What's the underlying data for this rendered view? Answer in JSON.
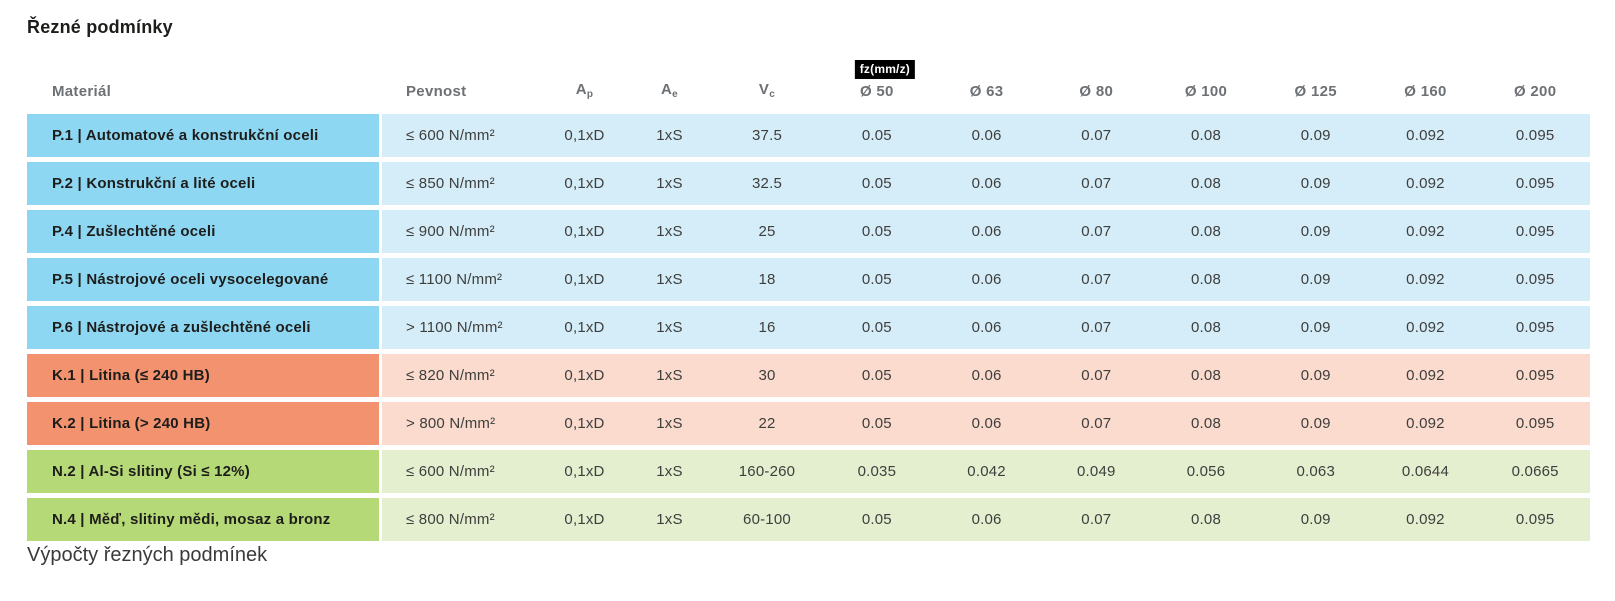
{
  "page": {
    "title": "Řezné podmínky",
    "footer_heading": "Výpočty řezných podmínek"
  },
  "table": {
    "headers": {
      "material": "Materiál",
      "pevnost": "Pevnost",
      "ap_base": "A",
      "ap_sub": "p",
      "ae_base": "A",
      "ae_sub": "e",
      "vc_base": "V",
      "vc_sub": "c",
      "fz_badge": "fz(mm/z)",
      "diameters": [
        "Ø 50",
        "Ø 63",
        "Ø 80",
        "Ø 100",
        "Ø 125",
        "Ø 160",
        "Ø 200"
      ]
    },
    "rows": [
      {
        "group": "steel",
        "material": "P.1 | Automatové a konstrukční oceli",
        "pevnost": "≤ 600 N/mm²",
        "ap": "0,1xD",
        "ae": "1xS",
        "vc": "37.5",
        "fz": [
          "0.05",
          "0.06",
          "0.07",
          "0.08",
          "0.09",
          "0.092",
          "0.095"
        ]
      },
      {
        "group": "steel",
        "material": "P.2 | Konstrukční a lité oceli",
        "pevnost": "≤ 850 N/mm²",
        "ap": "0,1xD",
        "ae": "1xS",
        "vc": "32.5",
        "fz": [
          "0.05",
          "0.06",
          "0.07",
          "0.08",
          "0.09",
          "0.092",
          "0.095"
        ]
      },
      {
        "group": "steel",
        "material": "P.4 | Zušlechtěné oceli",
        "pevnost": "≤ 900 N/mm²",
        "ap": "0,1xD",
        "ae": "1xS",
        "vc": "25",
        "fz": [
          "0.05",
          "0.06",
          "0.07",
          "0.08",
          "0.09",
          "0.092",
          "0.095"
        ]
      },
      {
        "group": "steel",
        "material": "P.5 | Nástrojové oceli vysocelegované",
        "pevnost": "≤ 1100 N/mm²",
        "ap": "0,1xD",
        "ae": "1xS",
        "vc": "18",
        "fz": [
          "0.05",
          "0.06",
          "0.07",
          "0.08",
          "0.09",
          "0.092",
          "0.095"
        ]
      },
      {
        "group": "steel",
        "material": "P.6 | Nástrojové a zušlechtěné oceli",
        "pevnost": "> 1100 N/mm²",
        "ap": "0,1xD",
        "ae": "1xS",
        "vc": "16",
        "fz": [
          "0.05",
          "0.06",
          "0.07",
          "0.08",
          "0.09",
          "0.092",
          "0.095"
        ]
      },
      {
        "group": "cast",
        "material": "K.1 | Litina (≤ 240 HB)",
        "pevnost": "≤ 820 N/mm²",
        "ap": "0,1xD",
        "ae": "1xS",
        "vc": "30",
        "fz": [
          "0.05",
          "0.06",
          "0.07",
          "0.08",
          "0.09",
          "0.092",
          "0.095"
        ]
      },
      {
        "group": "cast",
        "material": "K.2 | Litina (> 240 HB)",
        "pevnost": "> 800 N/mm²",
        "ap": "0,1xD",
        "ae": "1xS",
        "vc": "22",
        "fz": [
          "0.05",
          "0.06",
          "0.07",
          "0.08",
          "0.09",
          "0.092",
          "0.095"
        ]
      },
      {
        "group": "nonferrous",
        "material": "N.2 | Al-Si slitiny (Si ≤ 12%)",
        "pevnost": "≤ 600 N/mm²",
        "ap": "0,1xD",
        "ae": "1xS",
        "vc": "160-260",
        "fz": [
          "0.035",
          "0.042",
          "0.049",
          "0.056",
          "0.063",
          "0.0644",
          "0.0665"
        ]
      },
      {
        "group": "nonferrous",
        "material": "N.4 | Měď, slitiny mědi, mosaz a bronz",
        "pevnost": "≤ 800 N/mm²",
        "ap": "0,1xD",
        "ae": "1xS",
        "vc": "60-100",
        "fz": [
          "0.05",
          "0.06",
          "0.07",
          "0.08",
          "0.09",
          "0.092",
          "0.095"
        ]
      }
    ],
    "colors": {
      "steel_label": "#8ed7f2",
      "steel_row": "#d5edf8",
      "cast_label": "#f2926f",
      "cast_row": "#fadbce",
      "nonferrous_label": "#b6d977",
      "nonferrous_row": "#e4efd0",
      "badge_bg": "#000000",
      "badge_text": "#ffffff"
    }
  }
}
